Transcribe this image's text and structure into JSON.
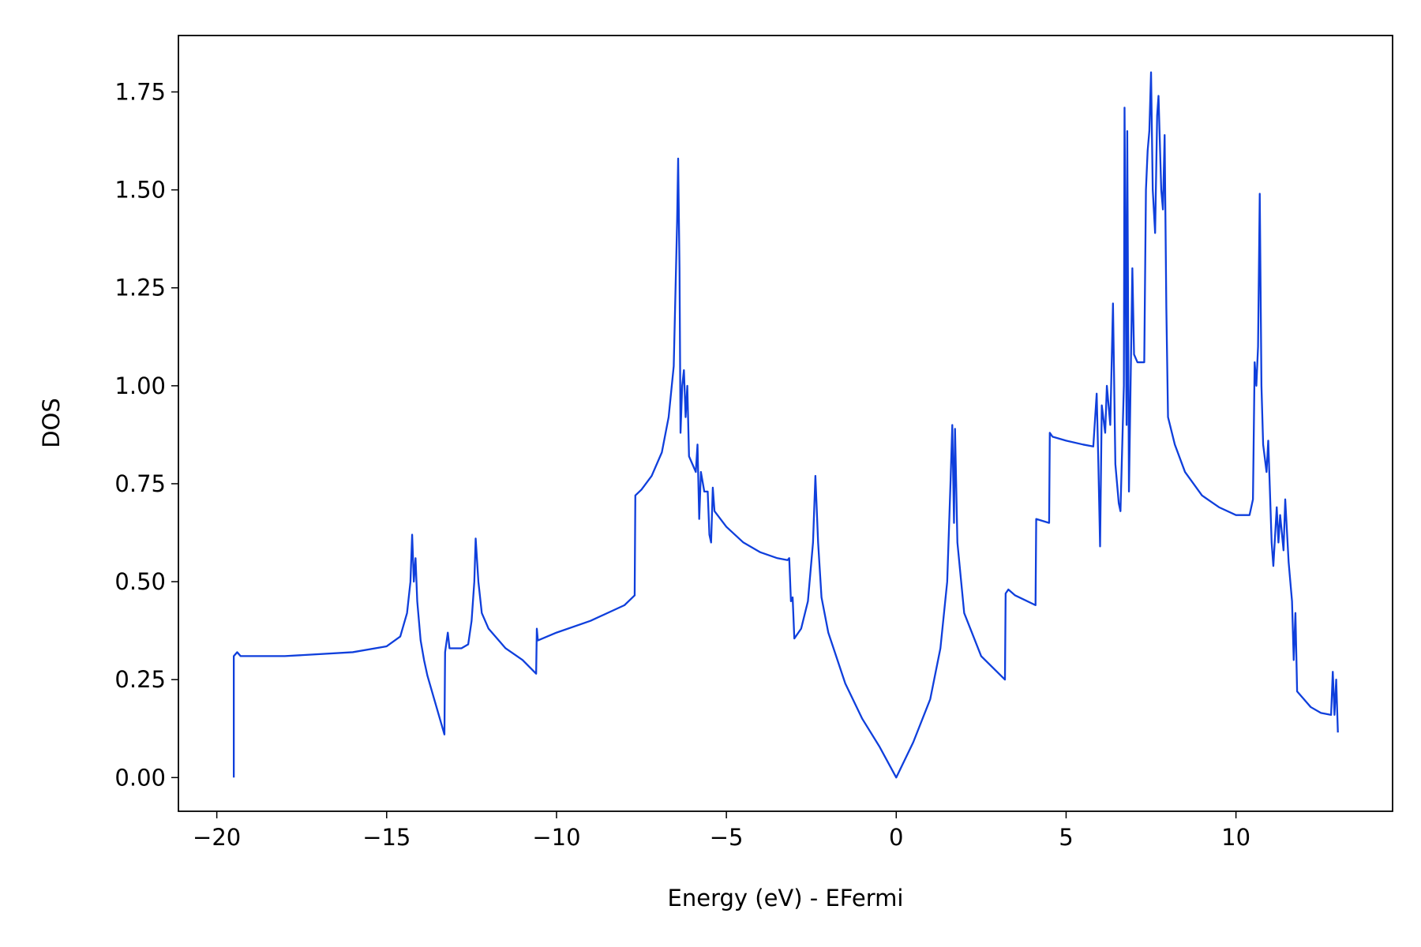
{
  "chart_data": {
    "type": "line",
    "xlabel": "Energy (eV) - EFermi",
    "ylabel": "DOS",
    "xlim": [
      -21.13,
      14.61
    ],
    "ylim": [
      -0.086,
      1.894
    ],
    "xticks": [
      {
        "value": -20,
        "label": "−20"
      },
      {
        "value": -15,
        "label": "−15"
      },
      {
        "value": -10,
        "label": "−10"
      },
      {
        "value": -5,
        "label": "−5"
      },
      0,
      5,
      10
    ],
    "yticks": [
      {
        "value": 0,
        "label": "0.00"
      },
      {
        "value": 0.25,
        "label": "0.25"
      },
      {
        "value": 0.5,
        "label": "0.50"
      },
      {
        "value": 0.75,
        "label": "0.75"
      },
      {
        "value": 1,
        "label": "1.00"
      },
      {
        "value": 1.25,
        "label": "1.25"
      },
      {
        "value": 1.5,
        "label": "1.50"
      },
      {
        "value": 1.75,
        "label": "1.75"
      }
    ],
    "grid": false,
    "series": [
      {
        "color": "#0f3fdc",
        "x": [
          -19.5,
          -19.5,
          -19.4,
          -19.3,
          -18,
          -16,
          -15,
          -14.6,
          -14.4,
          -14.3,
          -14.25,
          -14.2,
          -14.15,
          -14.1,
          -14.0,
          -13.9,
          -13.8,
          -13.6,
          -13.4,
          -13.3,
          -13.28,
          -13.2,
          -13.15,
          -13.0,
          -12.8,
          -12.6,
          -12.5,
          -12.42,
          -12.38,
          -12.3,
          -12.2,
          -12.0,
          -11.5,
          -11,
          -10.6,
          -10.58,
          -10.55,
          -10,
          -9,
          -8,
          -7.7,
          -7.68,
          -7.5,
          -7.2,
          -6.9,
          -6.7,
          -6.55,
          -6.45,
          -6.42,
          -6.38,
          -6.35,
          -6.3,
          -6.25,
          -6.2,
          -6.15,
          -6.1,
          -6.0,
          -5.9,
          -5.85,
          -5.8,
          -5.75,
          -5.65,
          -5.55,
          -5.5,
          -5.45,
          -5.4,
          -5.35,
          -5,
          -4.5,
          -4,
          -3.5,
          -3.2,
          -3.15,
          -3.1,
          -3.05,
          -3.0,
          -2.8,
          -2.6,
          -2.45,
          -2.38,
          -2.3,
          -2.2,
          -2,
          -1.5,
          -1,
          -0.5,
          0,
          0.5,
          1,
          1.3,
          1.5,
          1.6,
          1.65,
          1.7,
          1.73,
          1.8,
          2,
          2.5,
          3.2,
          3.22,
          3.3,
          3.5,
          4.1,
          4.12,
          4.5,
          4.52,
          4.6,
          5,
          5.5,
          5.8,
          5.9,
          5.95,
          6.0,
          6.05,
          6.15,
          6.2,
          6.3,
          6.38,
          6.45,
          6.5,
          6.55,
          6.6,
          6.7,
          6.72,
          6.78,
          6.8,
          6.85,
          6.95,
          7.0,
          7.1,
          7.3,
          7.35,
          7.4,
          7.45,
          7.5,
          7.55,
          7.62,
          7.68,
          7.72,
          7.8,
          7.85,
          7.9,
          7.95,
          8.0,
          8.2,
          8.5,
          9,
          9.5,
          10,
          10.4,
          10.5,
          10.55,
          10.6,
          10.65,
          10.7,
          10.75,
          10.8,
          10.9,
          10.95,
          11.05,
          11.1,
          11.2,
          11.25,
          11.3,
          11.4,
          11.45,
          11.55,
          11.65,
          11.7,
          11.75,
          11.8,
          12,
          12.2,
          12.5,
          12.8,
          12.85,
          12.9,
          12.95,
          13.0
        ],
        "values": [
          0,
          0.31,
          0.32,
          0.31,
          0.31,
          0.32,
          0.335,
          0.36,
          0.42,
          0.5,
          0.62,
          0.5,
          0.56,
          0.45,
          0.35,
          0.3,
          0.26,
          0.2,
          0.14,
          0.11,
          0.32,
          0.37,
          0.33,
          0.33,
          0.33,
          0.34,
          0.4,
          0.5,
          0.61,
          0.5,
          0.42,
          0.38,
          0.33,
          0.3,
          0.265,
          0.38,
          0.35,
          0.37,
          0.4,
          0.44,
          0.465,
          0.72,
          0.735,
          0.77,
          0.83,
          0.92,
          1.05,
          1.42,
          1.58,
          1.3,
          0.88,
          1.0,
          1.04,
          0.92,
          1.0,
          0.82,
          0.8,
          0.78,
          0.85,
          0.66,
          0.78,
          0.73,
          0.73,
          0.62,
          0.6,
          0.74,
          0.68,
          0.64,
          0.6,
          0.575,
          0.56,
          0.555,
          0.56,
          0.45,
          0.46,
          0.355,
          0.38,
          0.45,
          0.6,
          0.77,
          0.6,
          0.46,
          0.37,
          0.24,
          0.15,
          0.08,
          0,
          0.09,
          0.2,
          0.33,
          0.5,
          0.76,
          0.9,
          0.65,
          0.89,
          0.6,
          0.42,
          0.31,
          0.25,
          0.47,
          0.48,
          0.465,
          0.44,
          0.66,
          0.65,
          0.88,
          0.87,
          0.86,
          0.85,
          0.845,
          0.98,
          0.8,
          0.59,
          0.95,
          0.88,
          1.0,
          0.9,
          1.21,
          0.8,
          0.75,
          0.7,
          0.68,
          1.0,
          1.71,
          0.9,
          1.65,
          0.73,
          1.3,
          1.08,
          1.06,
          1.06,
          1.5,
          1.6,
          1.65,
          1.8,
          1.5,
          1.39,
          1.69,
          1.74,
          1.5,
          1.45,
          1.64,
          1.2,
          0.92,
          0.85,
          0.78,
          0.72,
          0.69,
          0.67,
          0.67,
          0.71,
          1.06,
          1.0,
          1.1,
          1.49,
          1.0,
          0.85,
          0.78,
          0.86,
          0.6,
          0.54,
          0.69,
          0.6,
          0.67,
          0.58,
          0.71,
          0.55,
          0.45,
          0.3,
          0.42,
          0.22,
          0.2,
          0.18,
          0.165,
          0.16,
          0.27,
          0.16,
          0.25,
          0.115
        ]
      }
    ]
  }
}
